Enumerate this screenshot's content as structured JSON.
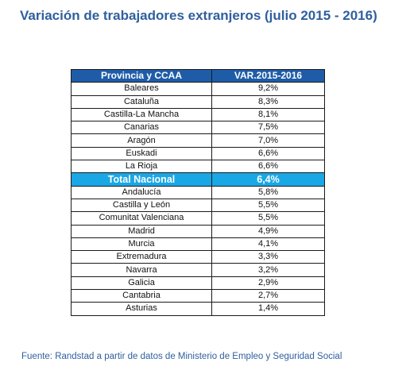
{
  "title": "Variación de trabajadores extranjeros (julio 2015 - 2016)",
  "table": {
    "headers": [
      "Provincia y CCAA",
      "VAR.2015-2016"
    ],
    "rows": [
      {
        "region": "Baleares",
        "var": "9,2%"
      },
      {
        "region": "Cataluña",
        "var": "8,3%"
      },
      {
        "region": "Castilla-La Mancha",
        "var": "8,1%"
      },
      {
        "region": "Canarias",
        "var": "7,5%"
      },
      {
        "region": "Aragón",
        "var": "7,0%"
      },
      {
        "region": "Euskadi",
        "var": "6,6%"
      },
      {
        "region": "La Rioja",
        "var": "6,6%"
      },
      {
        "region": "Total Nacional",
        "var": "6,4%"
      },
      {
        "region": "Andalucía",
        "var": "5,8%"
      },
      {
        "region": "Castilla y León",
        "var": "5,5%"
      },
      {
        "region": "Comunitat Valenciana",
        "var": "5,5%"
      },
      {
        "region": "Madrid",
        "var": "4,9%"
      },
      {
        "region": "Murcia",
        "var": "4,1%"
      },
      {
        "region": "Extremadura",
        "var": "3,3%"
      },
      {
        "region": "Navarra",
        "var": "3,2%"
      },
      {
        "region": "Galicia",
        "var": "2,9%"
      },
      {
        "region": "Cantabria",
        "var": "2,7%"
      },
      {
        "region": "Asturias",
        "var": "1,4%"
      }
    ]
  },
  "source": "Fuente: Randstad a partir de datos de Ministerio de Empleo y Seguridad Social",
  "colors": {
    "title": "#2f5f9e",
    "header_bg": "#1f5ca8",
    "highlight_bg": "#1aa7e6",
    "text": "#111111"
  }
}
